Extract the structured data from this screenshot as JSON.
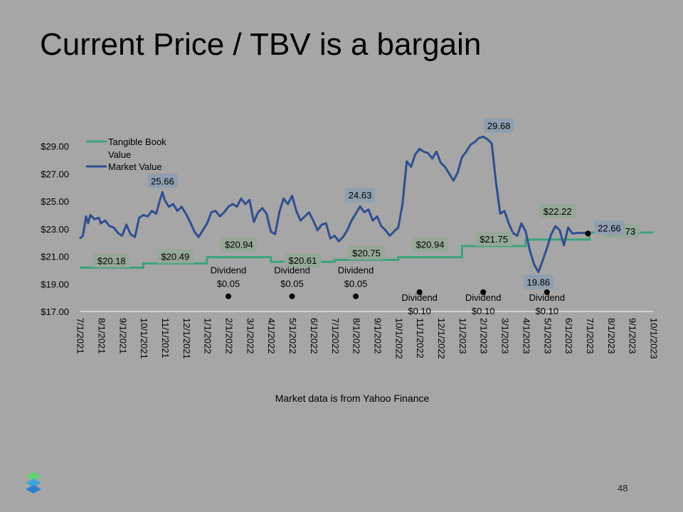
{
  "slide": {
    "title": "Current Price / TBV is a bargain",
    "source_note": "Market data is from Yahoo Finance",
    "page_number": "48"
  },
  "colors": {
    "background": "#a6a6a6",
    "tbv": "#3aa57a",
    "market": "#2f4f8f",
    "label_box": "#8f9fb0",
    "tbv_label_box": "#95a898"
  },
  "chart_data": {
    "type": "line",
    "y_tick_labels": [
      "$17.00",
      "$19.00",
      "$21.00",
      "$23.00",
      "$25.00",
      "$27.00",
      "$29.00"
    ],
    "y_ticks": [
      17,
      19,
      21,
      23,
      25,
      27,
      29
    ],
    "ylim": [
      17,
      29.7
    ],
    "x_tick_labels": [
      "7/1/2021",
      "8/1/2021",
      "9/1/2021",
      "10/1/2021",
      "11/1/2021",
      "12/1/2021",
      "1/1/2022",
      "2/1/2022",
      "3/1/2022",
      "4/1/2022",
      "5/1/2022",
      "6/1/2022",
      "7/1/2022",
      "8/1/2022",
      "9/1/2022",
      "10/1/2022",
      "11/1/2022",
      "12/1/2022",
      "1/1/2023",
      "2/1/2023",
      "3/1/2023",
      "4/1/2023",
      "5/1/2023",
      "6/1/2023",
      "7/1/2023",
      "8/1/2023",
      "9/1/2023",
      "10/1/2023"
    ],
    "xlim_months": [
      0,
      27
    ],
    "legend": {
      "placement": "top-left",
      "entries": [
        {
          "name": "Tangible Book\nValue",
          "color": "#3aa57a"
        },
        {
          "name": "Market Value",
          "color": "#2f4f8f"
        }
      ]
    },
    "series": [
      {
        "name": "Tangible Book Value",
        "color": "#3aa57a",
        "steps": [
          {
            "x0": 0,
            "x1": 3,
            "y": 20.18,
            "label": "$20.18"
          },
          {
            "x0": 3,
            "x1": 6,
            "y": 20.49,
            "label": "$20.49"
          },
          {
            "x0": 6,
            "x1": 9,
            "y": 20.94,
            "label": "$20.94"
          },
          {
            "x0": 9,
            "x1": 12,
            "y": 20.61,
            "label": "$20.61"
          },
          {
            "x0": 12,
            "x1": 15,
            "y": 20.75,
            "label": "$20.75"
          },
          {
            "x0": 15,
            "x1": 18,
            "y": 20.94,
            "label": "$20.94"
          },
          {
            "x0": 18,
            "x1": 21,
            "y": 21.75,
            "label": "$21.75"
          },
          {
            "x0": 21,
            "x1": 24,
            "y": 22.22,
            "label": "$22.22"
          },
          {
            "x0": 24,
            "x1": 27,
            "y": 22.73,
            "label": "$22.73"
          }
        ]
      },
      {
        "name": "Market Value",
        "color": "#2f4f8f",
        "x": [
          0,
          0.15,
          0.3,
          0.4,
          0.5,
          0.7,
          0.9,
          1.0,
          1.2,
          1.4,
          1.6,
          1.8,
          2.0,
          2.2,
          2.4,
          2.6,
          2.8,
          3.0,
          3.2,
          3.4,
          3.6,
          3.8,
          3.9,
          4.0,
          4.2,
          4.4,
          4.6,
          4.8,
          5.0,
          5.2,
          5.4,
          5.6,
          5.8,
          6.0,
          6.2,
          6.4,
          6.6,
          6.8,
          7.0,
          7.2,
          7.4,
          7.6,
          7.8,
          8.0,
          8.2,
          8.4,
          8.6,
          8.8,
          9.0,
          9.2,
          9.4,
          9.6,
          9.8,
          10.0,
          10.2,
          10.4,
          10.6,
          10.8,
          11.0,
          11.2,
          11.4,
          11.6,
          11.8,
          12.0,
          12.2,
          12.4,
          12.6,
          12.8,
          13.0,
          13.2,
          13.4,
          13.6,
          13.8,
          14.0,
          14.2,
          14.4,
          14.6,
          14.8,
          15.0,
          15.2,
          15.4,
          15.6,
          15.8,
          16.0,
          16.2,
          16.4,
          16.6,
          16.8,
          17.0,
          17.2,
          17.4,
          17.6,
          17.8,
          18.0,
          18.2,
          18.4,
          18.6,
          18.8,
          19.0,
          19.2,
          19.4,
          19.6,
          19.8,
          20.0,
          20.2,
          20.4,
          20.6,
          20.8,
          21.0,
          21.2,
          21.4,
          21.6,
          21.8,
          22.0,
          22.1,
          22.2,
          22.4,
          22.6,
          22.8,
          23.0,
          23.2,
          23.4,
          23.6,
          23.8,
          24.0
        ],
        "values": [
          22.3,
          22.5,
          23.9,
          23.4,
          24.0,
          23.7,
          23.8,
          23.4,
          23.6,
          23.2,
          23.1,
          22.7,
          22.5,
          23.3,
          22.6,
          22.4,
          23.8,
          24.0,
          23.9,
          24.3,
          24.1,
          25.2,
          25.66,
          25.1,
          24.6,
          24.8,
          24.3,
          24.6,
          24.1,
          23.5,
          22.8,
          22.4,
          22.9,
          23.4,
          24.2,
          24.3,
          23.9,
          24.2,
          24.6,
          24.8,
          24.6,
          25.2,
          24.8,
          25.1,
          23.5,
          24.2,
          24.5,
          24.1,
          22.8,
          22.6,
          24.2,
          25.2,
          24.8,
          25.4,
          24.3,
          23.6,
          23.9,
          24.2,
          23.6,
          22.9,
          23.3,
          23.4,
          22.3,
          22.5,
          22.1,
          22.4,
          22.9,
          23.6,
          24.1,
          24.63,
          24.2,
          24.4,
          23.6,
          23.9,
          23.2,
          22.9,
          22.5,
          22.8,
          23.1,
          24.8,
          27.9,
          27.5,
          28.4,
          28.8,
          28.6,
          28.5,
          28.1,
          28.6,
          27.8,
          27.5,
          27.0,
          26.5,
          27.1,
          28.2,
          28.6,
          29.1,
          29.3,
          29.6,
          29.68,
          29.5,
          29.2,
          26.4,
          24.1,
          24.3,
          23.4,
          22.7,
          22.5,
          23.4,
          22.8,
          21.4,
          20.4,
          19.86,
          20.7,
          21.6,
          22.1,
          22.6,
          23.2,
          22.9,
          21.8,
          23.1,
          22.66,
          22.7,
          22.7,
          22.7,
          22.66
        ]
      }
    ],
    "point_labels": [
      {
        "text": "25.66",
        "x": 3.9,
        "y": 25.66
      },
      {
        "text": "24.63",
        "x": 13.2,
        "y": 24.63
      },
      {
        "text": "29.68",
        "x": 19.0,
        "y": 29.68
      },
      {
        "text": "19.86",
        "x": 21.6,
        "y": 19.86
      },
      {
        "text": "22.66",
        "x": 24.0,
        "y": 22.66
      }
    ],
    "dividends": [
      {
        "label": "Dividend\n$0.05",
        "x": 7.0,
        "y": 18.1,
        "text_above": true
      },
      {
        "label": "Dividend\n$0.05",
        "x": 10.0,
        "y": 18.1,
        "text_above": true
      },
      {
        "label": "Dividend\n$0.05",
        "x": 13.0,
        "y": 18.1,
        "text_above": true
      },
      {
        "label": "Dividend\n$0.10",
        "x": 16.0,
        "y": 18.4,
        "text_above": false
      },
      {
        "label": "Dividend\n$0.10",
        "x": 19.0,
        "y": 18.4,
        "text_above": false
      },
      {
        "label": "Dividend\n$0.10",
        "x": 22.0,
        "y": 18.4,
        "text_above": false
      }
    ]
  }
}
